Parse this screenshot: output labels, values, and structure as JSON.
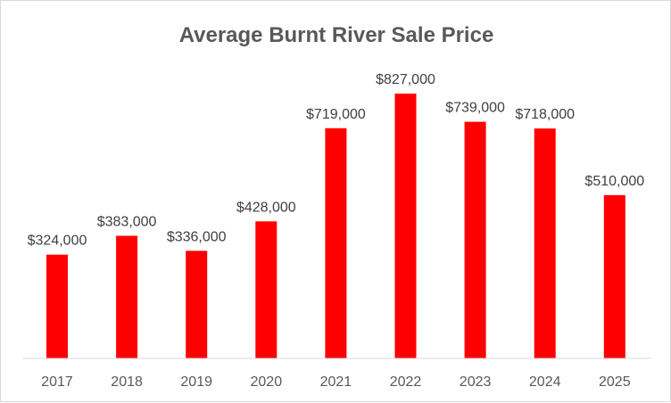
{
  "chart_data": {
    "type": "bar",
    "title": "Average Burnt River Sale Price",
    "xlabel": "",
    "ylabel": "",
    "categories": [
      "2017",
      "2018",
      "2019",
      "2020",
      "2021",
      "2022",
      "2023",
      "2024",
      "2025"
    ],
    "values": [
      324000,
      383000,
      336000,
      428000,
      719000,
      827000,
      739000,
      718000,
      510000
    ],
    "data_labels": [
      "$324,000",
      "$383,000",
      "$336,000",
      "$428,000",
      "$719,000",
      "$827,000",
      "$739,000",
      "$718,000",
      "$510,000"
    ],
    "ylim": [
      0,
      827000
    ],
    "grid": false,
    "legend": "none",
    "bar_color": "#ff0000"
  }
}
